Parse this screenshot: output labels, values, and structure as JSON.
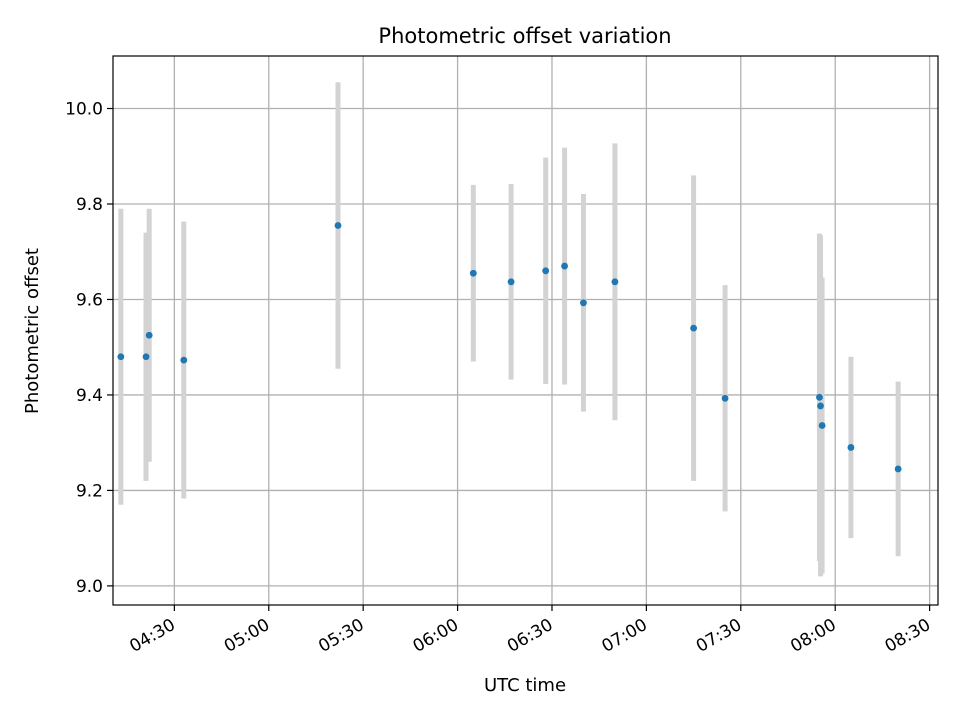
{
  "chart_data": {
    "type": "scatter",
    "title": "Photometric offset variation",
    "xlabel": "UTC time",
    "ylabel": "Photometric offset",
    "xlim": [
      "04:10:30",
      "08:32:40"
    ],
    "ylim": [
      8.96,
      10.11
    ],
    "x_ticks": [
      "04:30",
      "05:00",
      "05:30",
      "06:00",
      "06:30",
      "07:00",
      "07:30",
      "08:00",
      "08:30"
    ],
    "y_ticks": [
      "9.0",
      "9.2",
      "9.4",
      "9.6",
      "9.8",
      "10.0"
    ],
    "grid": true,
    "colors": {
      "points": "#1f77b4",
      "error_bars": "#d3d3d3",
      "grid": "#b0b0b0"
    },
    "series": [
      {
        "points": [
          {
            "x": "04:13",
            "y": 9.48,
            "err": 0.31
          },
          {
            "x": "04:21",
            "y": 9.48,
            "err": 0.26
          },
          {
            "x": "04:22",
            "y": 9.525,
            "err": 0.265
          },
          {
            "x": "04:33",
            "y": 9.473,
            "err": 0.29
          },
          {
            "x": "05:22",
            "y": 9.755,
            "err": 0.3
          },
          {
            "x": "06:05",
            "y": 9.655,
            "err": 0.185
          },
          {
            "x": "06:17",
            "y": 9.637,
            "err": 0.205
          },
          {
            "x": "06:28",
            "y": 9.66,
            "err": 0.237
          },
          {
            "x": "06:34",
            "y": 9.67,
            "err": 0.248
          },
          {
            "x": "06:40",
            "y": 9.593,
            "err": 0.228
          },
          {
            "x": "06:50",
            "y": 9.637,
            "err": 0.29
          },
          {
            "x": "07:15",
            "y": 9.54,
            "err": 0.32
          },
          {
            "x": "07:25",
            "y": 9.393,
            "err": 0.237
          },
          {
            "x": "07:55",
            "y": 9.395,
            "err": 0.343
          },
          {
            "x": "07:55:20",
            "y": 9.377,
            "err": 0.357
          },
          {
            "x": "07:55:50",
            "y": 9.336,
            "err": 0.31
          },
          {
            "x": "08:05",
            "y": 9.29,
            "err": 0.19
          },
          {
            "x": "08:20",
            "y": 9.245,
            "err": 0.183
          }
        ]
      }
    ]
  }
}
